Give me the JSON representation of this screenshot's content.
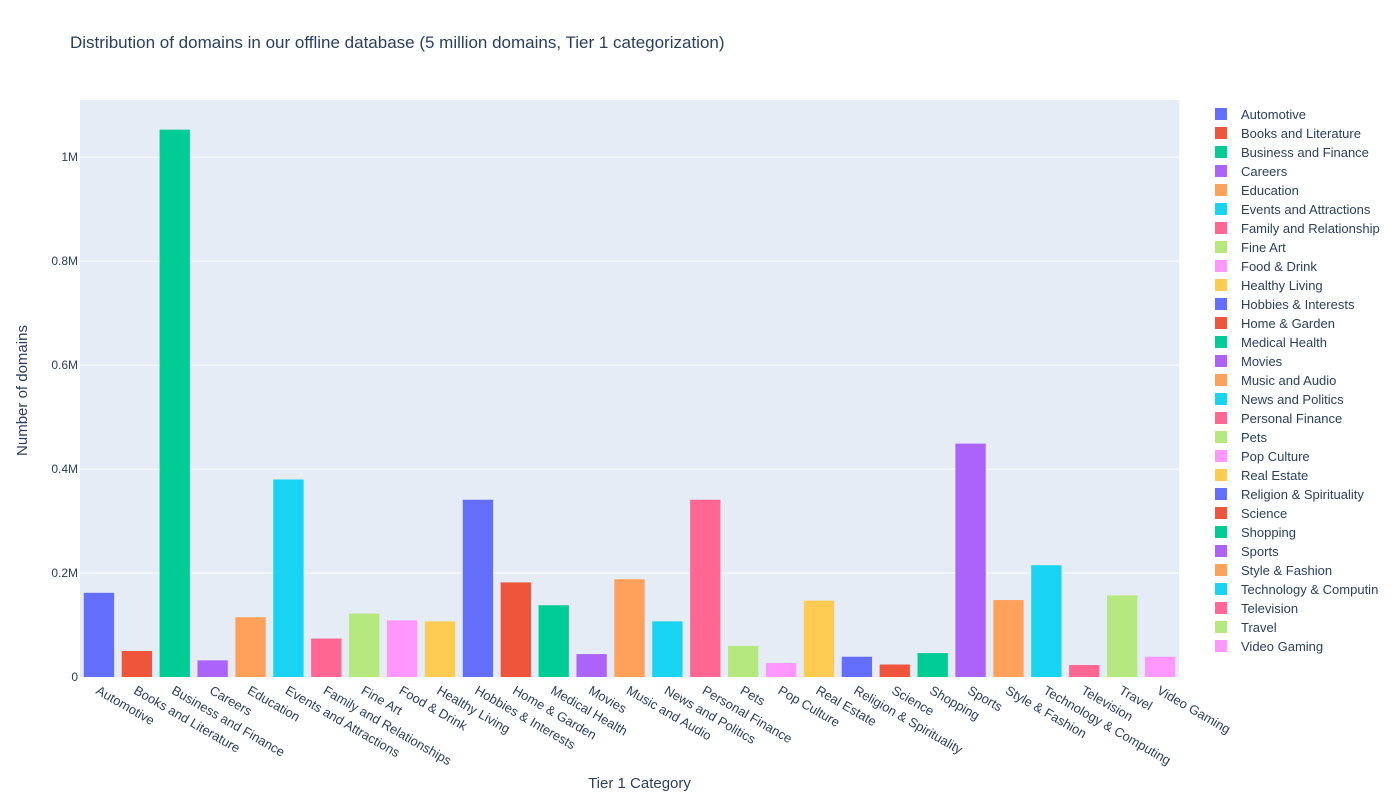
{
  "chart_data": {
    "type": "bar",
    "title": "Distribution of domains in our offline database (5 million domains, Tier 1 categorization)",
    "xlabel": "Tier 1 Category",
    "ylabel": "Number of domains",
    "ylim": [
      0,
      1110000
    ],
    "yticks": [
      {
        "value": 0,
        "label": "0"
      },
      {
        "value": 200000,
        "label": "0.2M"
      },
      {
        "value": 400000,
        "label": "0.4M"
      },
      {
        "value": 600000,
        "label": "0.6M"
      },
      {
        "value": 800000,
        "label": "0.8M"
      },
      {
        "value": 1000000,
        "label": "1M"
      }
    ],
    "grid": true,
    "legend_position": "right",
    "categories": [
      "Automotive",
      "Books and Literature",
      "Business and Finance",
      "Careers",
      "Education",
      "Events and Attractions",
      "Family and Relationships",
      "Fine Art",
      "Food & Drink",
      "Healthy Living",
      "Hobbies & Interests",
      "Home & Garden",
      "Medical Health",
      "Movies",
      "Music and Audio",
      "News and Politics",
      "Personal Finance",
      "Pets",
      "Pop Culture",
      "Real Estate",
      "Religion & Spirituality",
      "Science",
      "Shopping",
      "Sports",
      "Style & Fashion",
      "Technology & Computing",
      "Television",
      "Travel",
      "Video Gaming"
    ],
    "legend_labels": [
      "Automotive",
      "Books and Literature",
      "Business and Finance",
      "Careers",
      "Education",
      "Events and Attractions",
      "Family and Relationship",
      "Fine Art",
      "Food & Drink",
      "Healthy Living",
      "Hobbies & Interests",
      "Home & Garden",
      "Medical Health",
      "Movies",
      "Music and Audio",
      "News and Politics",
      "Personal Finance",
      "Pets",
      "Pop Culture",
      "Real Estate",
      "Religion & Spirituality",
      "Science",
      "Shopping",
      "Sports",
      "Style & Fashion",
      "Technology & Computin",
      "Television",
      "Travel",
      "Video Gaming"
    ],
    "values": [
      162000,
      50000,
      1053000,
      32000,
      115000,
      380000,
      74000,
      122000,
      109000,
      107000,
      341000,
      182000,
      138000,
      44000,
      188000,
      107000,
      341000,
      60000,
      27000,
      147000,
      39000,
      24000,
      46000,
      449000,
      148000,
      215000,
      23000,
      157000,
      39000
    ],
    "colors": [
      "#636efa",
      "#ef553b",
      "#00cc96",
      "#ab63fa",
      "#ffa15a",
      "#19d3f3",
      "#ff6692",
      "#b6e880",
      "#ff97ff",
      "#fecb52",
      "#636efa",
      "#ef553b",
      "#00cc96",
      "#ab63fa",
      "#ffa15a",
      "#19d3f3",
      "#ff6692",
      "#b6e880",
      "#ff97ff",
      "#fecb52",
      "#636efa",
      "#ef553b",
      "#00cc96",
      "#ab63fa",
      "#ffa15a",
      "#19d3f3",
      "#ff6692",
      "#b6e880",
      "#ff97ff"
    ],
    "plot_background": "#e5ecf6"
  }
}
